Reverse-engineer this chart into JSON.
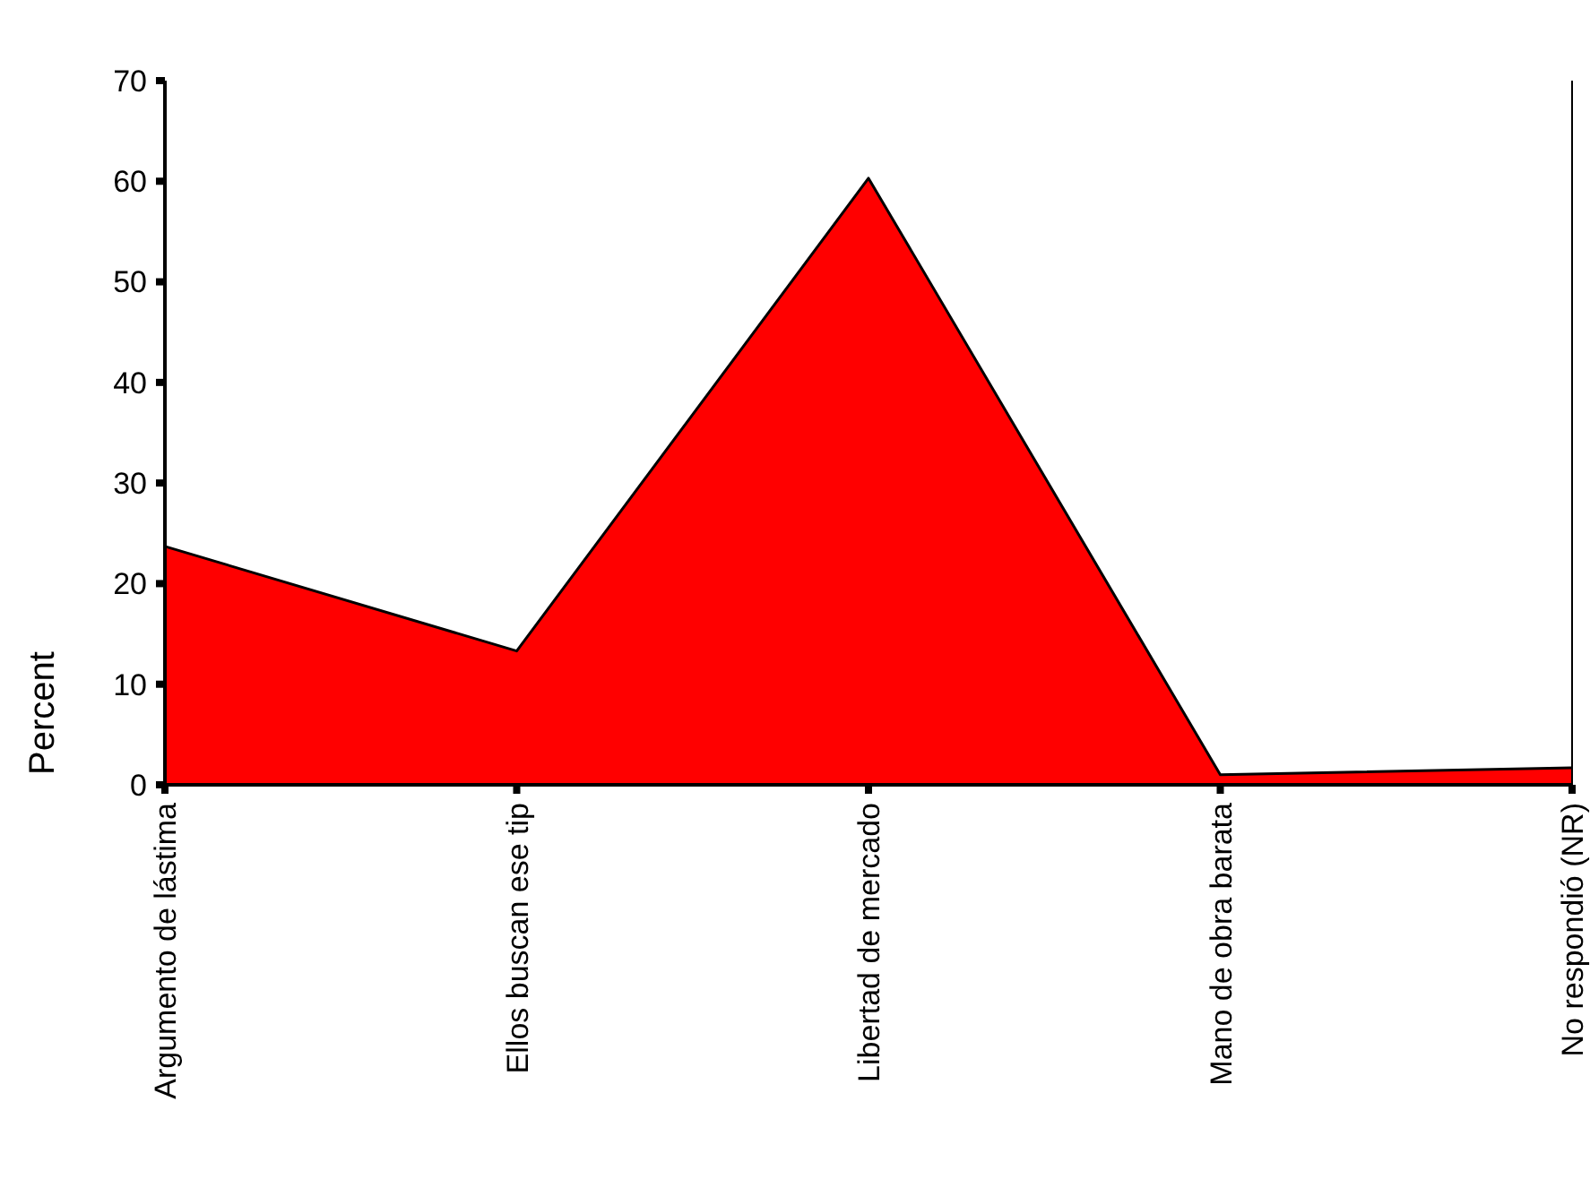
{
  "chart_data": {
    "type": "area",
    "ylabel": "Percent",
    "categories": [
      "Argumento de lástima",
      "Ellos buscan ese tip",
      "Libertad de mercado",
      "Mano de obra barata",
      "No respondió (NR)"
    ],
    "series": [
      {
        "color": "#ff0000",
        "values": [
          23.7,
          13.3,
          60.3,
          1.0,
          1.7
        ]
      }
    ],
    "ylim": [
      0,
      70
    ],
    "yticks": [
      0,
      10,
      20,
      30,
      40,
      50,
      60,
      70
    ]
  }
}
